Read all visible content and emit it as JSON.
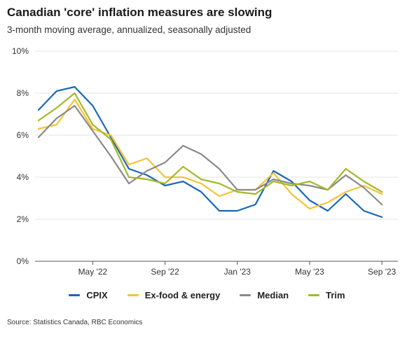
{
  "title": "Canadian 'core' inflation measures are slowing",
  "subtitle": "3-month moving average, annualized, seasonally adjusted",
  "source": "Source: Statistics Canada, RBC Economics",
  "chart_data": {
    "type": "line",
    "ylim": [
      0,
      10
    ],
    "yticks": [
      0,
      2,
      4,
      6,
      8,
      10
    ],
    "ytick_labels": [
      "0%",
      "2%",
      "4%",
      "6%",
      "8%",
      "10%"
    ],
    "x": [
      "2022-02",
      "2022-03",
      "2022-04",
      "2022-05",
      "2022-06",
      "2022-07",
      "2022-08",
      "2022-09",
      "2022-10",
      "2022-11",
      "2022-12",
      "2023-01",
      "2023-02",
      "2023-03",
      "2023-04",
      "2023-05",
      "2023-06",
      "2023-07",
      "2023-08",
      "2023-09",
      "2023-10"
    ],
    "xtick_labels": [
      {
        "at": "2022-05",
        "label": "May '22"
      },
      {
        "at": "2022-09",
        "label": "Sep '22"
      },
      {
        "at": "2023-01",
        "label": "Jan '23"
      },
      {
        "at": "2023-05",
        "label": "May '23"
      },
      {
        "at": "2023-09",
        "label": "Sep '23"
      }
    ],
    "grid": true,
    "legend_position": "bottom",
    "series": [
      {
        "name": "CPIX",
        "color": "#1768b7",
        "values": [
          7.2,
          8.1,
          8.3,
          7.4,
          5.9,
          4.4,
          4.1,
          3.6,
          3.8,
          3.3,
          2.4,
          2.4,
          2.7,
          4.3,
          3.8,
          2.9,
          2.4,
          3.2,
          2.4,
          2.1,
          null
        ]
      },
      {
        "name": "Ex-food & energy",
        "color": "#f7c235",
        "values": [
          6.3,
          6.5,
          7.7,
          6.3,
          6.0,
          4.6,
          4.9,
          4.0,
          4.0,
          3.7,
          3.1,
          3.4,
          3.4,
          4.2,
          3.2,
          2.5,
          2.8,
          3.3,
          3.6,
          3.2,
          null
        ]
      },
      {
        "name": "Median",
        "color": "#8a8a8a",
        "values": [
          5.9,
          6.8,
          7.4,
          6.2,
          5.0,
          3.7,
          4.3,
          4.7,
          5.5,
          5.1,
          4.4,
          3.4,
          3.4,
          3.9,
          3.7,
          3.6,
          3.4,
          4.1,
          3.5,
          2.7,
          null
        ]
      },
      {
        "name": "Trim",
        "color": "#a5b82b",
        "values": [
          6.7,
          7.3,
          8.0,
          6.5,
          5.8,
          4.0,
          3.9,
          3.7,
          4.5,
          3.9,
          3.7,
          3.3,
          3.2,
          3.8,
          3.6,
          3.8,
          3.4,
          4.4,
          3.8,
          3.3,
          null
        ]
      }
    ]
  }
}
